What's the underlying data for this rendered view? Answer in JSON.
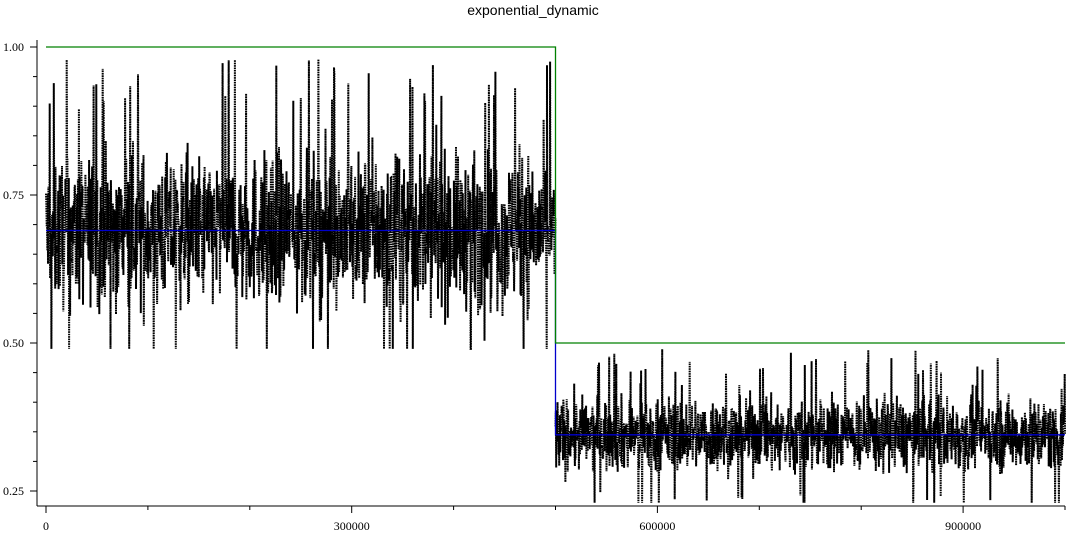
{
  "chart_data": {
    "type": "line",
    "title": "exponential_dynamic",
    "xlabel": "",
    "ylabel": "",
    "xlim": [
      0,
      1000000
    ],
    "ylim": [
      0.25,
      1.0
    ],
    "x_ticks": [
      0,
      300000,
      600000,
      900000
    ],
    "x_tick_labels": [
      "0",
      "300000",
      "600000",
      "900000"
    ],
    "x_minor_step": 100000,
    "y_ticks": [
      0.25,
      0.5,
      0.75,
      1.0
    ],
    "y_tick_labels": [
      "0.25",
      "0.50",
      "0.75",
      "1.00"
    ],
    "y_minor_step": 0.05,
    "grid": false,
    "legend": "none",
    "series": [
      {
        "kind": "noisy-scatter",
        "color": "#000000",
        "segments": [
          {
            "x_start": 0,
            "x_end": 500000,
            "center": 0.69,
            "min": 0.49,
            "max": 0.98
          },
          {
            "x_start": 500000,
            "x_end": 1000000,
            "center": 0.345,
            "min": 0.23,
            "max": 0.49
          }
        ]
      },
      {
        "kind": "step-line",
        "color": "#0000cc",
        "points": [
          [
            0,
            0.69
          ],
          [
            500000,
            0.69
          ],
          [
            500000,
            0.345
          ],
          [
            1000000,
            0.345
          ]
        ]
      },
      {
        "kind": "step-line",
        "color": "#008000",
        "points": [
          [
            0,
            1.0
          ],
          [
            500000,
            1.0
          ],
          [
            500000,
            0.5
          ],
          [
            1000000,
            0.5
          ]
        ]
      }
    ]
  }
}
